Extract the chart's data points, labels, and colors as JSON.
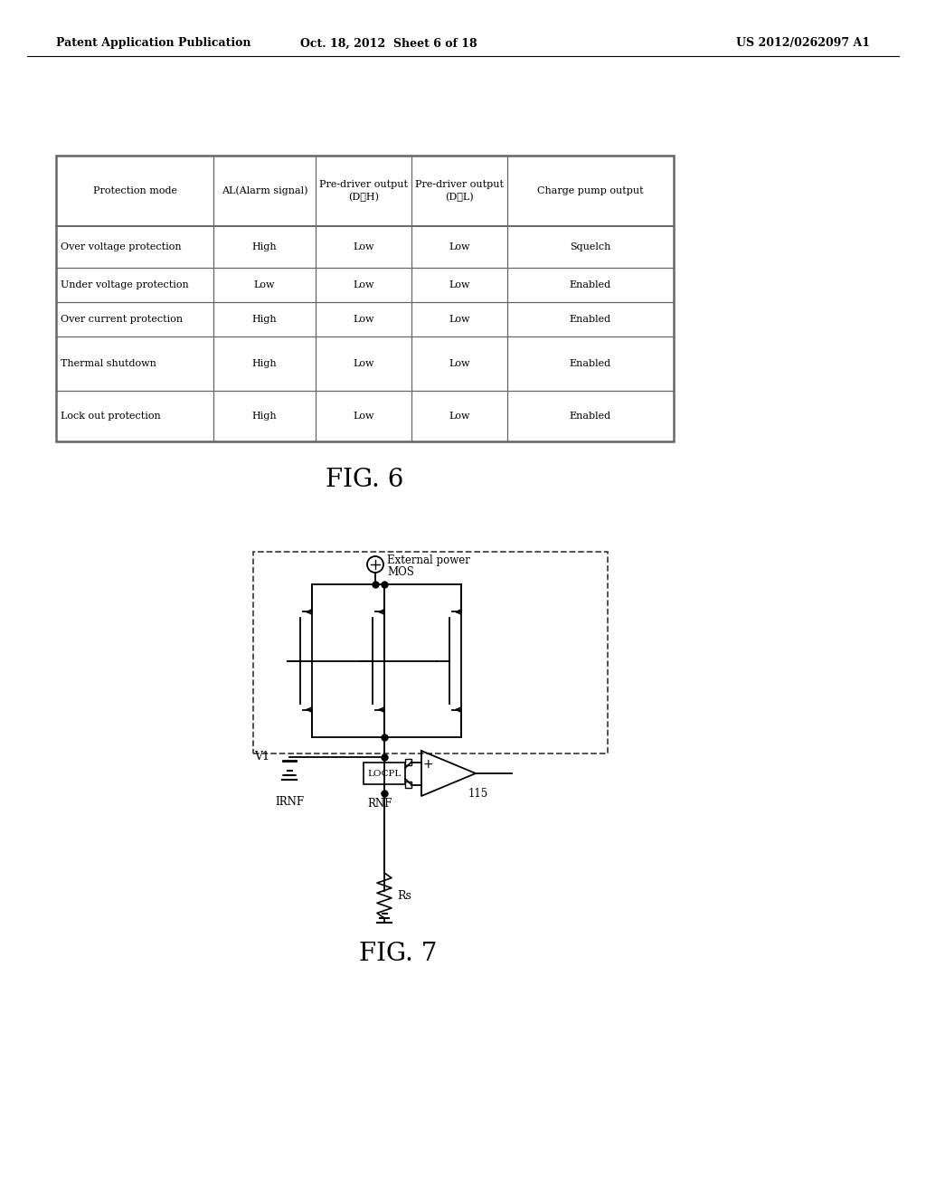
{
  "header_text_left": "Patent Application Publication",
  "header_text_center": "Oct. 18, 2012  Sheet 6 of 18",
  "header_text_right": "US 2012/0262097 A1",
  "fig6_label": "FIG. 6",
  "fig7_label": "FIG. 7",
  "table_headers": [
    "Protection mode",
    "AL(Alarm signal)",
    "Pre-driver output\n(D★H)",
    "Pre-driver output\n(D★L)",
    "Charge pump output"
  ],
  "table_rows": [
    [
      "Over voltage protection",
      "High",
      "Low",
      "Low",
      "Squelch"
    ],
    [
      "Under voltage protection",
      "Low",
      "Low",
      "Low",
      "Enabled"
    ],
    [
      "Over current protection",
      "High",
      "Low",
      "Low",
      "Enabled"
    ],
    [
      "Thermal shutdown",
      "High",
      "Low",
      "Low",
      "Enabled"
    ],
    [
      "Lock out protection",
      "High",
      "Low",
      "Low",
      "Enabled"
    ]
  ],
  "bg_color": "#ffffff",
  "text_color": "#000000",
  "table_border_color": "#666666"
}
